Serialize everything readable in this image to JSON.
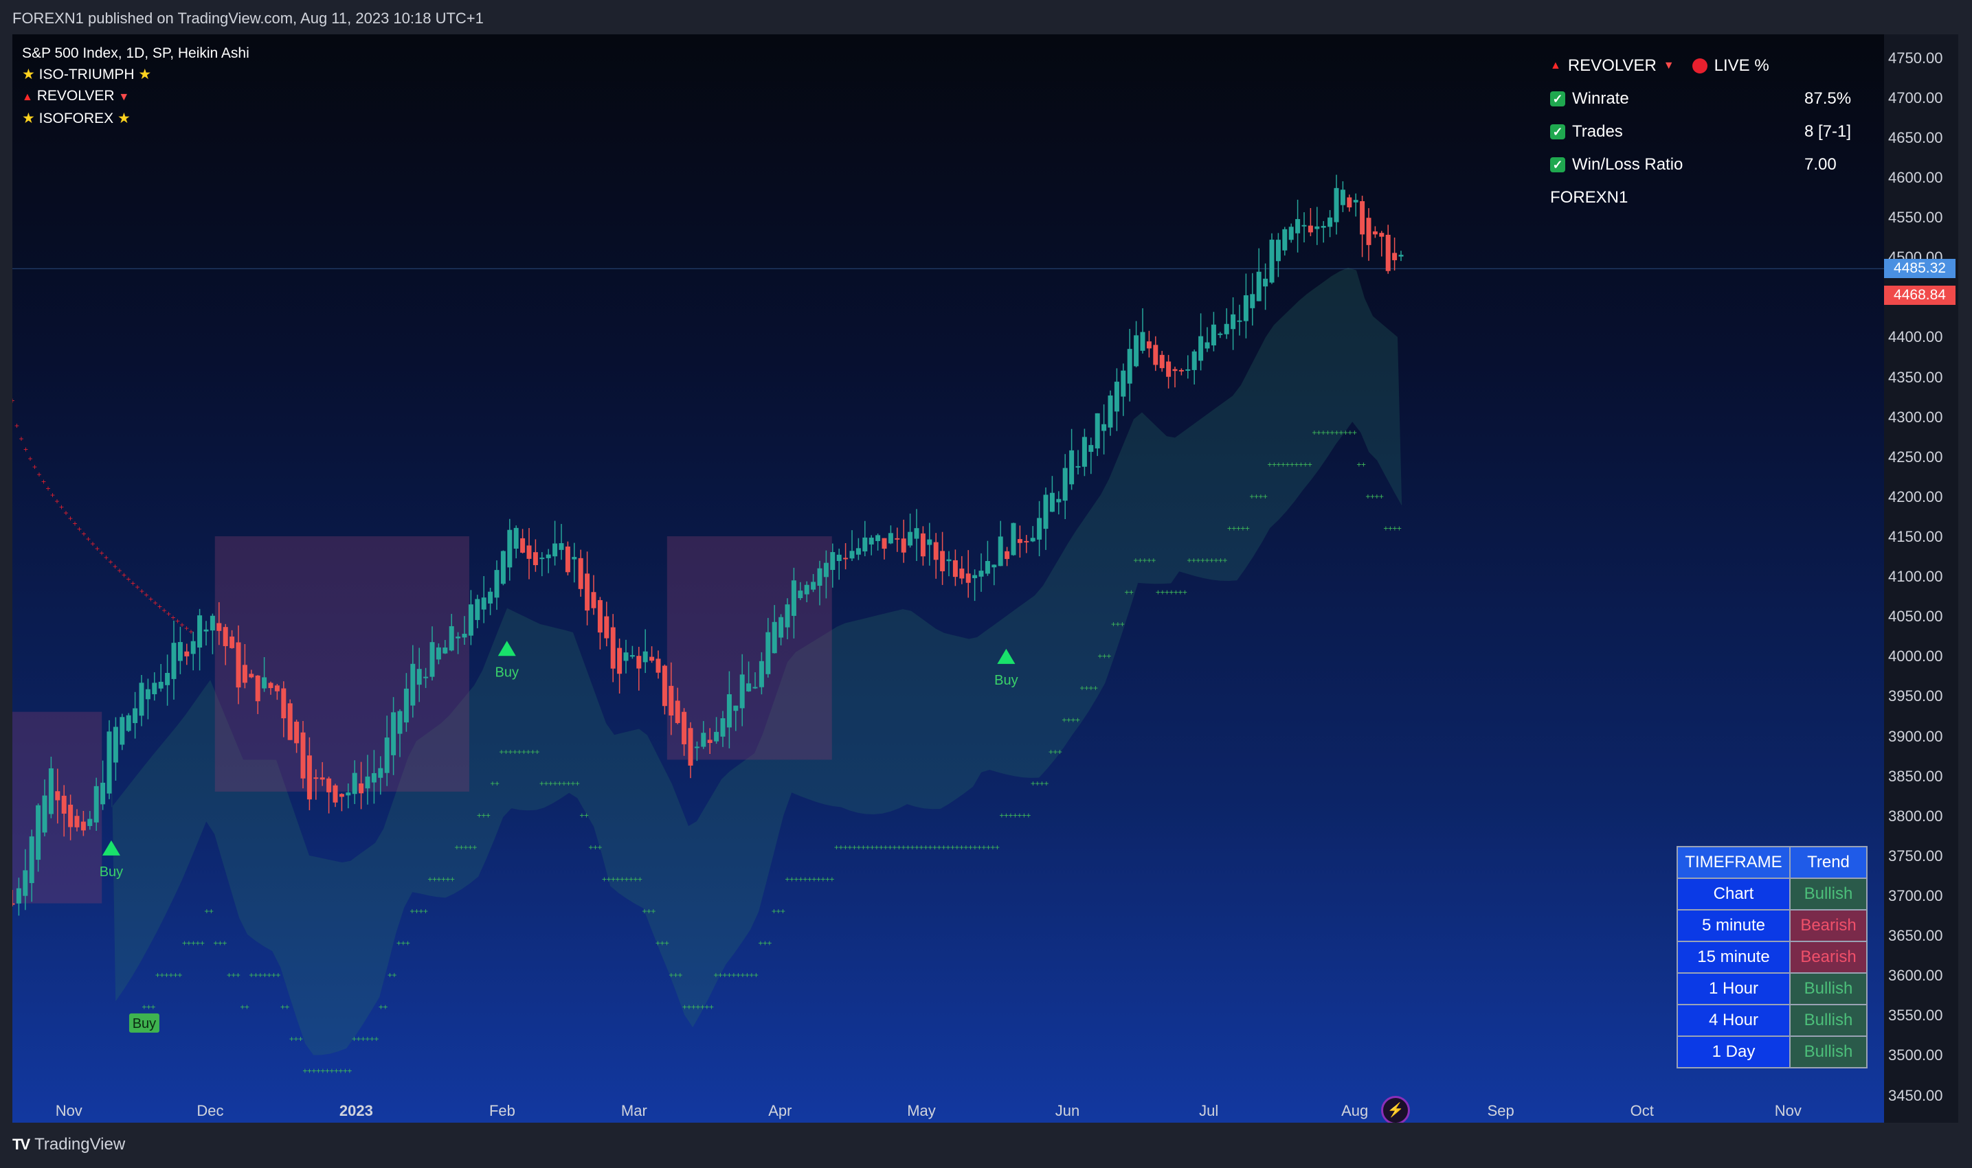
{
  "header": {
    "publish_line": "FOREXN1 published on TradingView.com, Aug 11, 2023 10:18 UTC+1"
  },
  "legend": {
    "symbol": "S&P 500 Index, 1D, SP, Heikin Ashi",
    "line1": "ISO-TRIUMPH",
    "line2": "REVOLVER",
    "line3": "ISOFOREX"
  },
  "stats": {
    "title": "REVOLVER",
    "live": "LIVE %",
    "rows": [
      {
        "label": "Winrate",
        "value": "87.5%"
      },
      {
        "label": "Trades",
        "value": "8 [7-1]"
      },
      {
        "label": "Win/Loss Ratio",
        "value": "7.00"
      }
    ],
    "author": "FOREXN1"
  },
  "timeframe_table": {
    "header": [
      "TIMEFRAME",
      "Trend"
    ],
    "rows": [
      {
        "tf": "Chart",
        "trend": "Bullish"
      },
      {
        "tf": "5 minute",
        "trend": "Bearish"
      },
      {
        "tf": "15 minute",
        "trend": "Bearish"
      },
      {
        "tf": "1 Hour",
        "trend": "Bullish"
      },
      {
        "tf": "4 Hour",
        "trend": "Bullish"
      },
      {
        "tf": "1 Day",
        "trend": "Bullish"
      }
    ]
  },
  "price_axis": {
    "last_price": "4485.32",
    "close_price": "4468.84",
    "last_color": "#4a90e2",
    "close_color": "#f04a4a"
  },
  "footer": {
    "brand": "TradingView"
  },
  "chart_data": {
    "type": "candlestick",
    "title": "S&P 500 Index, 1D, SP, Heikin Ashi",
    "x_ticks": [
      "Nov",
      "Dec",
      "2023",
      "Feb",
      "Mar",
      "Apr",
      "May",
      "Jun",
      "Jul",
      "Aug",
      "Sep",
      "Oct",
      "Nov"
    ],
    "y_ticks": [
      4750,
      4700,
      4650,
      4600,
      4550,
      4500,
      4450,
      4400,
      4350,
      4300,
      4250,
      4200,
      4150,
      4100,
      4050,
      4000,
      3950,
      3900,
      3850,
      3800,
      3750,
      3700,
      3650,
      3600,
      3550,
      3500,
      3450
    ],
    "ylim": [
      3447,
      4760
    ],
    "close_path": [
      [
        "2022-10-20",
        3690
      ],
      [
        "2022-10-28",
        3860
      ],
      [
        "2022-11-04",
        3760
      ],
      [
        "2022-11-10",
        3900
      ],
      [
        "2022-11-18",
        3960
      ],
      [
        "2022-11-25",
        4010
      ],
      [
        "2022-12-01",
        4060
      ],
      [
        "2022-12-08",
        3960
      ],
      [
        "2022-12-15",
        3960
      ],
      [
        "2022-12-22",
        3840
      ],
      [
        "2022-12-30",
        3830
      ],
      [
        "2023-01-06",
        3860
      ],
      [
        "2023-01-13",
        3980
      ],
      [
        "2023-01-20",
        4010
      ],
      [
        "2023-01-27",
        4060
      ],
      [
        "2023-02-02",
        4150
      ],
      [
        "2023-02-09",
        4130
      ],
      [
        "2023-02-16",
        4120
      ],
      [
        "2023-02-24",
        3990
      ],
      [
        "2023-03-03",
        4000
      ],
      [
        "2023-03-09",
        3930
      ],
      [
        "2023-03-13",
        3870
      ],
      [
        "2023-03-20",
        3940
      ],
      [
        "2023-03-27",
        3970
      ],
      [
        "2023-04-03",
        4090
      ],
      [
        "2023-04-14",
        4130
      ],
      [
        "2023-04-21",
        4140
      ],
      [
        "2023-04-28",
        4150
      ],
      [
        "2023-05-05",
        4120
      ],
      [
        "2023-05-12",
        4110
      ],
      [
        "2023-05-19",
        4140
      ],
      [
        "2023-05-26",
        4170
      ],
      [
        "2023-06-02",
        4240
      ],
      [
        "2023-06-09",
        4300
      ],
      [
        "2023-06-16",
        4400
      ],
      [
        "2023-06-23",
        4360
      ],
      [
        "2023-06-30",
        4390
      ],
      [
        "2023-07-07",
        4420
      ],
      [
        "2023-07-14",
        4500
      ],
      [
        "2023-07-21",
        4540
      ],
      [
        "2023-07-28",
        4570
      ],
      [
        "2023-08-01",
        4580
      ],
      [
        "2023-08-04",
        4520
      ],
      [
        "2023-08-11",
        4485
      ]
    ],
    "signals": [
      {
        "date": "2022-11-10",
        "label": "Buy"
      },
      {
        "date": "2023-02-02",
        "label": "Buy"
      },
      {
        "date": "2023-05-19",
        "label": "Buy"
      },
      {
        "date": "2022-11-17",
        "label": "Buy"
      }
    ],
    "revolver_stop": {
      "from": "2022-10-20",
      "to": "2022-11-27",
      "start": 4320,
      "end": 4030
    },
    "trailing_stop_start": "2022-11-17"
  }
}
